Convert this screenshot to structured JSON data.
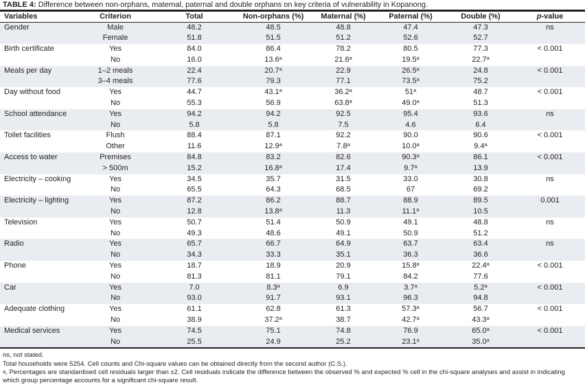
{
  "title": {
    "label": "TABLE 4:",
    "text": "Difference between non-orphans, maternal, paternal and double orphans on key criteria of vulnerability in Kopanong."
  },
  "table": {
    "columns": [
      "Variables",
      "Criterion",
      "Total",
      "Non-orphans (%)",
      "Maternal (%)",
      "Paternal (%)",
      "Double (%)",
      "p-value"
    ],
    "groups": [
      {
        "variable": "Gender",
        "shaded": true,
        "p_value": "ns",
        "rows": [
          [
            "Male",
            "48.2",
            "48.5",
            "48.8",
            "47.4",
            "47.3"
          ],
          [
            "Female",
            "51.8",
            "51.5",
            "51.2",
            "52.6",
            "52.7"
          ]
        ]
      },
      {
        "variable": "Birth certificate",
        "shaded": false,
        "p_value": "< 0.001",
        "rows": [
          [
            "Yes",
            "84.0",
            "86.4",
            "78.2",
            "80.5",
            "77.3"
          ],
          [
            "No",
            "16.0",
            "13.6ᵃ",
            "21.6ᵃ",
            "19.5ᵃ",
            "22.7ᵃ"
          ]
        ]
      },
      {
        "variable": "Meals per day",
        "shaded": true,
        "p_value": "< 0.001",
        "rows": [
          [
            "1–2 meals",
            "22.4",
            "20.7ᵃ",
            "22.9",
            "26.5ᵃ",
            "24.8"
          ],
          [
            "3–4 meals",
            "77.6",
            "79.3",
            "77.1",
            "73.5ᵃ",
            "75.2"
          ]
        ]
      },
      {
        "variable": "Day without food",
        "shaded": false,
        "p_value": "< 0.001",
        "rows": [
          [
            "Yes",
            "44.7",
            "43.1ᵃ",
            "36.2ᵃ",
            "51ᵃ",
            "48.7"
          ],
          [
            "No",
            "55.3",
            "56.9",
            "63.8ᵃ",
            "49.0ᵃ",
            "51.3"
          ]
        ]
      },
      {
        "variable": "School attendance",
        "shaded": true,
        "p_value": "ns",
        "rows": [
          [
            "Yes",
            "94.2",
            "94.2",
            "92.5",
            "95.4",
            "93.6"
          ],
          [
            "No",
            "5.8",
            "5.8",
            "7.5",
            "4.6",
            "6.4"
          ]
        ]
      },
      {
        "variable": "Toilet facilities",
        "shaded": false,
        "p_value": "< 0.001",
        "rows": [
          [
            "Flush",
            "88.4",
            "87.1",
            "92.2",
            "90.0",
            "90.6"
          ],
          [
            "Other",
            "11.6",
            "12.9ᵃ",
            "7.8ᵃ",
            "10.0ᵃ",
            "9.4ᵃ"
          ]
        ]
      },
      {
        "variable": "Access to water",
        "shaded": true,
        "p_value": "< 0.001",
        "rows": [
          [
            "Premises",
            "84.8",
            "83.2",
            "82.6",
            "90.3ᵃ",
            "86.1"
          ],
          [
            "> 500m",
            "15.2",
            "16.8ᵃ",
            "17.4",
            "9.7ᵃ",
            "13.9"
          ]
        ]
      },
      {
        "variable": "Electricity – cooking",
        "shaded": false,
        "p_value": "ns",
        "rows": [
          [
            "Yes",
            "34.5",
            "35.7",
            "31.5",
            "33.0",
            "30.8"
          ],
          [
            "No",
            "65.5",
            "64.3",
            "68.5",
            "67",
            "69.2"
          ]
        ]
      },
      {
        "variable": "Electricity – lighting",
        "shaded": true,
        "p_value": "0.001",
        "rows": [
          [
            "Yes",
            "87.2",
            "86.2",
            "88.7",
            "88.9",
            "89.5"
          ],
          [
            "No",
            "12.8",
            "13.8ᵃ",
            "11.3",
            "11.1ᵃ",
            "10.5"
          ]
        ]
      },
      {
        "variable": "Television",
        "shaded": false,
        "p_value": "ns",
        "rows": [
          [
            "Yes",
            "50.7",
            "51.4",
            "50.9",
            "49.1",
            "48.8"
          ],
          [
            "No",
            "49.3",
            "48.6",
            "49.1",
            "50.9",
            "51.2"
          ]
        ]
      },
      {
        "variable": "Radio",
        "shaded": true,
        "p_value": "ns",
        "rows": [
          [
            "Yes",
            "65.7",
            "66.7",
            "64.9",
            "63.7",
            "63.4"
          ],
          [
            "No",
            "34.3",
            "33.3",
            "35.1",
            "36.3",
            "36.6"
          ]
        ]
      },
      {
        "variable": "Phone",
        "shaded": false,
        "p_value": "< 0.001",
        "rows": [
          [
            "Yes",
            "18.7",
            "18.9",
            "20.9",
            "15.8ᵃ",
            "22.4ᵃ"
          ],
          [
            "No",
            "81.3",
            "81.1",
            "79.1",
            "84.2",
            "77.6"
          ]
        ]
      },
      {
        "variable": "Car",
        "shaded": true,
        "p_value": "< 0.001",
        "rows": [
          [
            "Yes",
            "7.0",
            "8.3ᵃ",
            "6.9",
            "3.7ᵃ",
            "5.2ᵃ"
          ],
          [
            "No",
            "93.0",
            "91.7",
            "93.1",
            "96.3",
            "94.8"
          ]
        ]
      },
      {
        "variable": "Adequate clothing",
        "shaded": false,
        "p_value": "< 0.001",
        "rows": [
          [
            "Yes",
            "61.1",
            "62.8",
            "61.3",
            "57.3ᵃ",
            "56.7"
          ],
          [
            "No",
            "38.9",
            "37.2ᵃ",
            "38.7",
            "42.7ᵃ",
            "43.3ᵃ"
          ]
        ]
      },
      {
        "variable": "Medical services",
        "shaded": true,
        "p_value": "< 0.001",
        "rows": [
          [
            "Yes",
            "74.5",
            "75.1",
            "74.8",
            "76.9",
            "65.0ᵃ"
          ],
          [
            "No",
            "25.5",
            "24.9",
            "25.2",
            "23.1ᵃ",
            "35.0ᵃ"
          ]
        ]
      }
    ]
  },
  "footnotes": [
    "ns, not stated.",
    "Total households were 5254. Cell counts and Chi-square values can be obtained directly from the second author (C.S.).",
    "ᵃ, Percentages are standardised cell residuals larger than ±2. Cell residuals indicate the difference between the observed % and expected % cell in the chi-square analyses and assist in indicating which group percentage accounts for a significant chi-square result."
  ]
}
